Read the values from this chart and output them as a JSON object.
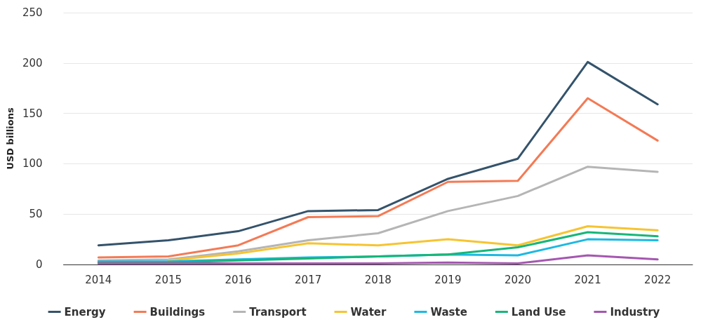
{
  "chart_data": {
    "type": "line",
    "ylabel": "USD billions",
    "categories": [
      "2014",
      "2015",
      "2016",
      "2017",
      "2018",
      "2019",
      "2020",
      "2021",
      "2022"
    ],
    "series": [
      {
        "name": "Energy",
        "color": "#34536b",
        "values": [
          19,
          24,
          33,
          53,
          54,
          85,
          105,
          201,
          159
        ]
      },
      {
        "name": "Buildings",
        "color": "#f47a55",
        "values": [
          7,
          8,
          19,
          47,
          48,
          82,
          83,
          165,
          123
        ]
      },
      {
        "name": "Transport",
        "color": "#b5b5b5",
        "values": [
          4,
          5,
          13,
          24,
          31,
          53,
          68,
          97,
          92
        ]
      },
      {
        "name": "Water",
        "color": "#f6c431",
        "values": [
          null,
          4,
          11,
          21,
          19,
          25,
          19,
          38,
          34
        ]
      },
      {
        "name": "Waste",
        "color": "#1cb9e2",
        "values": [
          3,
          3,
          5,
          7,
          8,
          10,
          9,
          25,
          24
        ]
      },
      {
        "name": "Land Use",
        "color": "#17b67a",
        "values": [
          2,
          2,
          4,
          6,
          8,
          10,
          17,
          32,
          28
        ]
      },
      {
        "name": "Industry",
        "color": "#a557b0",
        "values": [
          1,
          1,
          1,
          1,
          1,
          2,
          1,
          9,
          5
        ]
      }
    ],
    "ylim": [
      0,
      250
    ],
    "yticks": [
      0,
      50,
      100,
      150,
      200,
      250
    ],
    "grid": "y",
    "legend": "bottom",
    "marker": "none",
    "line_style": "solid"
  }
}
